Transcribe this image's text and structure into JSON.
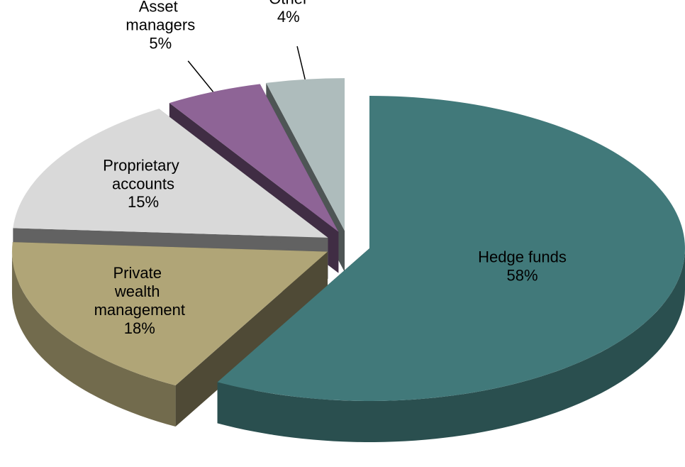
{
  "chart_data": {
    "type": "pie",
    "categories": [
      "Hedge funds",
      "Private wealth management",
      "Proprietary accounts",
      "Asset managers",
      "Other"
    ],
    "values": [
      58,
      18,
      15,
      5,
      4
    ],
    "value_labels": [
      "58%",
      "18%",
      "15%",
      "5%",
      "4%"
    ],
    "colors": [
      "#41797a",
      "#b0a577",
      "#d9d9d9",
      "#8e6496",
      "#aebcbc"
    ],
    "legend": false
  }
}
